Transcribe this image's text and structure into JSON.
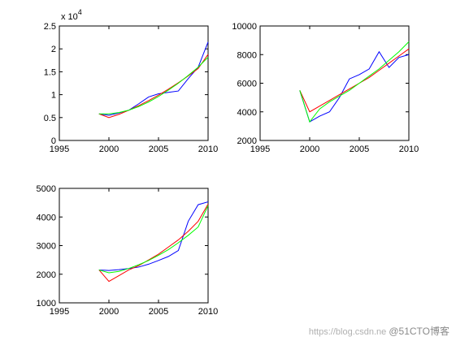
{
  "chart_data": [
    {
      "type": "line",
      "xlim": [
        1995,
        2010
      ],
      "ylim": [
        0,
        2.5
      ],
      "exponent_label": "x 10^4",
      "exponent_base": "x 10",
      "exponent_power": "4",
      "x_ticks": [
        1995,
        2000,
        2005,
        2010
      ],
      "y_ticks": [
        0,
        0.5,
        1,
        1.5,
        2,
        2.5
      ],
      "x_tick_labels": [
        "1995",
        "2000",
        "2005",
        "2010"
      ],
      "y_tick_labels": [
        "0",
        "0.5",
        "1",
        "1.5",
        "2",
        "2.5"
      ],
      "grid": false,
      "series": [
        {
          "color": "#0000ff",
          "x": [
            1999,
            2000,
            2001,
            2002,
            2003,
            2004,
            2005,
            2006,
            2007,
            2008,
            2009,
            2010
          ],
          "y": [
            0.58,
            0.55,
            0.6,
            0.66,
            0.8,
            0.95,
            1.02,
            1.05,
            1.08,
            1.35,
            1.6,
            2.15
          ]
        },
        {
          "color": "#ff0000",
          "x": [
            1999,
            2000,
            2001,
            2002,
            2003,
            2004,
            2005,
            2006,
            2007,
            2008,
            2009,
            2010
          ],
          "y": [
            0.58,
            0.5,
            0.57,
            0.66,
            0.76,
            0.87,
            0.99,
            1.12,
            1.26,
            1.41,
            1.57,
            1.88
          ]
        },
        {
          "color": "#00ff00",
          "x": [
            1999,
            2000,
            2001,
            2002,
            2003,
            2004,
            2005,
            2006,
            2007,
            2008,
            2009,
            2010
          ],
          "y": [
            0.58,
            0.58,
            0.61,
            0.66,
            0.74,
            0.84,
            0.96,
            1.1,
            1.25,
            1.42,
            1.6,
            1.82
          ]
        }
      ]
    },
    {
      "type": "line",
      "xlim": [
        1995,
        2010
      ],
      "ylim": [
        2000,
        10000
      ],
      "x_ticks": [
        1995,
        2000,
        2005,
        2010
      ],
      "y_ticks": [
        2000,
        4000,
        6000,
        8000,
        10000
      ],
      "x_tick_labels": [
        "1995",
        "2000",
        "2005",
        "2010"
      ],
      "y_tick_labels": [
        "2000",
        "4000",
        "6000",
        "8000",
        "10000"
      ],
      "grid": false,
      "series": [
        {
          "color": "#0000ff",
          "x": [
            1999,
            2000,
            2001,
            2002,
            2003,
            2004,
            2005,
            2006,
            2007,
            2008,
            2009,
            2010
          ],
          "y": [
            5500,
            3300,
            3700,
            4000,
            5000,
            6300,
            6600,
            7000,
            8200,
            7100,
            7800,
            8000
          ]
        },
        {
          "color": "#ff0000",
          "x": [
            1999,
            2000,
            2001,
            2002,
            2003,
            2004,
            2005,
            2006,
            2007,
            2008,
            2009,
            2010
          ],
          "y": [
            5500,
            4000,
            4400,
            4800,
            5200,
            5600,
            6000,
            6400,
            6900,
            7400,
            7900,
            8400
          ]
        },
        {
          "color": "#00ff00",
          "x": [
            1999,
            2000,
            2001,
            2002,
            2003,
            2004,
            2005,
            2006,
            2007,
            2008,
            2009,
            2010
          ],
          "y": [
            5500,
            3300,
            4200,
            4700,
            5100,
            5500,
            6000,
            6500,
            7000,
            7600,
            8200,
            8900
          ]
        }
      ]
    },
    {
      "type": "line",
      "xlim": [
        1995,
        2010
      ],
      "ylim": [
        1000,
        5000
      ],
      "x_ticks": [
        1995,
        2000,
        2005,
        2010
      ],
      "y_ticks": [
        1000,
        2000,
        3000,
        4000,
        5000
      ],
      "x_tick_labels": [
        "1995",
        "2000",
        "2005",
        "2010"
      ],
      "y_tick_labels": [
        "1000",
        "2000",
        "3000",
        "4000",
        "5000"
      ],
      "grid": false,
      "series": [
        {
          "color": "#0000ff",
          "x": [
            1999,
            2000,
            2001,
            2002,
            2003,
            2004,
            2005,
            2006,
            2007,
            2008,
            2009,
            2010
          ],
          "y": [
            2150,
            2130,
            2160,
            2200,
            2250,
            2350,
            2480,
            2620,
            2830,
            3850,
            4430,
            4530
          ]
        },
        {
          "color": "#ff0000",
          "x": [
            1999,
            2000,
            2001,
            2002,
            2003,
            2004,
            2005,
            2006,
            2007,
            2008,
            2009,
            2010
          ],
          "y": [
            2150,
            1750,
            1950,
            2150,
            2300,
            2500,
            2700,
            2950,
            3200,
            3500,
            3850,
            4450
          ]
        },
        {
          "color": "#00ff00",
          "x": [
            1999,
            2000,
            2001,
            2002,
            2003,
            2004,
            2005,
            2006,
            2007,
            2008,
            2009,
            2010
          ],
          "y": [
            2150,
            2050,
            2100,
            2200,
            2330,
            2480,
            2660,
            2860,
            3100,
            3360,
            3650,
            4400
          ]
        }
      ]
    }
  ],
  "watermark": {
    "url_text": "https://blog.csdn.ne",
    "brand_text": "@51CTO博客"
  }
}
